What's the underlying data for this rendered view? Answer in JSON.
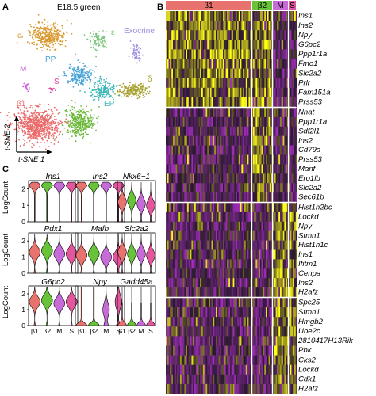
{
  "panel_a": {
    "label": "A",
    "title": "E18.5 green",
    "axis_y": "t-SNE 2",
    "axis_x": "t-SNE 1",
    "clusters": [
      {
        "name": "α",
        "color": "#d9992e"
      },
      {
        "name": "ε",
        "color": "#78c57b"
      },
      {
        "name": "Exocrine",
        "color": "#9b8fe0"
      },
      {
        "name": "M",
        "color": "#c85fd8"
      },
      {
        "name": "PP",
        "color": "#4aa3d7"
      },
      {
        "name": "S",
        "color": "#e0419a"
      },
      {
        "name": "δ",
        "color": "#a8a030"
      },
      {
        "name": "EP",
        "color": "#3ab6b6"
      },
      {
        "name": "β1",
        "color": "#ea6a6a"
      },
      {
        "name": "β2",
        "color": "#6cb83a"
      }
    ]
  },
  "panel_b": {
    "label": "B",
    "groups": [
      {
        "name": "β1",
        "color": "#e8736e"
      },
      {
        "name": "β2",
        "color": "#68c33a"
      },
      {
        "name": "M",
        "color": "#c66bd8"
      },
      {
        "name": "S",
        "color": "#e3559d"
      }
    ],
    "blocks": [
      {
        "genes": [
          "Ins1",
          "Ins2",
          "Npy",
          "G6pc2",
          "Ppp1r1a",
          "Fmo1",
          "Slc2a2",
          "Prlr",
          "Fam151a",
          "Prss53"
        ]
      },
      {
        "genes": [
          "Nnat",
          "Ppp1r1a",
          "Sdf2l1",
          "Ins2",
          "Cd79a",
          "Prss53",
          "Manf",
          "Ero1lb",
          "Slc2a2",
          "Sec61b"
        ]
      },
      {
        "genes": [
          "Hist1h2bc",
          "Lockd",
          "Npy",
          "Stmn1",
          "Hist1h1c",
          "Ins1",
          "Ifitm1",
          "Cenpa",
          "Ins2",
          "H2afz"
        ]
      },
      {
        "genes": [
          "Spc25",
          "Stmn1",
          "Hmgb2",
          "Ube2c",
          "2810417H13Rik",
          "Pbk",
          "Cks2",
          "Lockd",
          "Cdk1",
          "H2afz"
        ]
      }
    ]
  },
  "panel_c": {
    "label": "C",
    "ylabel": "LogCount",
    "yticks": [
      "0",
      "1",
      "2"
    ],
    "xticks": [
      "β1",
      "β2",
      "M",
      "S"
    ],
    "group_colors": [
      "#e8736e",
      "#68c33a",
      "#c66bd8",
      "#e3559d"
    ],
    "genes": [
      "Ins1",
      "Ins2",
      "Nkx6−1",
      "Pdx1",
      "Mafb",
      "Slc2a2",
      "G6pc2",
      "Npy",
      "Gadd45a"
    ]
  },
  "chart_data": {
    "type": "violin",
    "title": "",
    "xlabel": "",
    "ylabel": "LogCount",
    "categories": [
      "β1",
      "β2",
      "M",
      "S"
    ],
    "ylim": [
      0,
      2.5
    ],
    "series": [
      {
        "name": "Ins1",
        "values": [
          2.3,
          2.3,
          2.3,
          2.3
        ]
      },
      {
        "name": "Ins2",
        "values": [
          2.3,
          2.3,
          2.3,
          2.3
        ]
      },
      {
        "name": "Nkx6−1",
        "values": [
          1.2,
          1.3,
          1.1,
          1.0
        ]
      },
      {
        "name": "Pdx1",
        "values": [
          1.3,
          1.4,
          1.2,
          1.2
        ]
      },
      {
        "name": "Mafb",
        "values": [
          1.1,
          1.2,
          1.0,
          1.0
        ]
      },
      {
        "name": "Slc2a2",
        "values": [
          1.3,
          1.2,
          1.2,
          1.1
        ]
      },
      {
        "name": "G6pc2",
        "values": [
          1.5,
          1.6,
          1.4,
          1.5
        ]
      },
      {
        "name": "Npy",
        "values": [
          0.2,
          0.2,
          1.0,
          1.5
        ]
      },
      {
        "name": "Gadd45a",
        "values": [
          0.2,
          0.2,
          0.3,
          0.3
        ]
      }
    ]
  }
}
